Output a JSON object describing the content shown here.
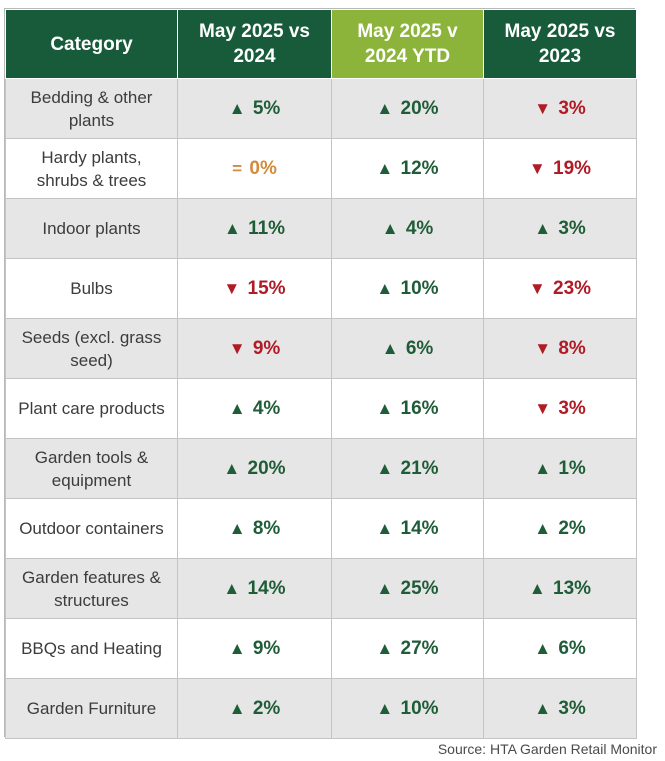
{
  "table": {
    "headers": [
      "Category",
      "May 2025 vs 2024",
      "May 2025 v 2024 YTD",
      "May 2025 vs 2023"
    ],
    "rows": [
      {
        "category": "Bedding & other plants",
        "values": [
          {
            "dir": "up",
            "arrow": "▲",
            "text": "5%"
          },
          {
            "dir": "up",
            "arrow": "▲",
            "text": "20%"
          },
          {
            "dir": "down",
            "arrow": "▼",
            "text": "3%"
          }
        ]
      },
      {
        "category": "Hardy plants, shrubs & trees",
        "values": [
          {
            "dir": "flat",
            "arrow": "=",
            "text": "0%"
          },
          {
            "dir": "up",
            "arrow": "▲",
            "text": "12%"
          },
          {
            "dir": "down",
            "arrow": "▼",
            "text": "19%"
          }
        ]
      },
      {
        "category": "Indoor plants",
        "values": [
          {
            "dir": "up",
            "arrow": "▲",
            "text": "11%"
          },
          {
            "dir": "up",
            "arrow": "▲",
            "text": "4%"
          },
          {
            "dir": "up",
            "arrow": "▲",
            "text": "3%"
          }
        ]
      },
      {
        "category": "Bulbs",
        "values": [
          {
            "dir": "down",
            "arrow": "▼",
            "text": "15%"
          },
          {
            "dir": "up",
            "arrow": "▲",
            "text": "10%"
          },
          {
            "dir": "down",
            "arrow": "▼",
            "text": "23%"
          }
        ]
      },
      {
        "category": "Seeds (excl. grass seed)",
        "values": [
          {
            "dir": "down",
            "arrow": "▼",
            "text": "9%"
          },
          {
            "dir": "up",
            "arrow": "▲",
            "text": "6%"
          },
          {
            "dir": "down",
            "arrow": "▼",
            "text": "8%"
          }
        ]
      },
      {
        "category": "Plant care products",
        "values": [
          {
            "dir": "up",
            "arrow": "▲",
            "text": "4%"
          },
          {
            "dir": "up",
            "arrow": "▲",
            "text": "16%"
          },
          {
            "dir": "down",
            "arrow": "▼",
            "text": "3%"
          }
        ]
      },
      {
        "category": "Garden tools & equipment",
        "values": [
          {
            "dir": "up",
            "arrow": "▲",
            "text": "20%"
          },
          {
            "dir": "up",
            "arrow": "▲",
            "text": "21%"
          },
          {
            "dir": "up",
            "arrow": "▲",
            "text": "1%"
          }
        ]
      },
      {
        "category": "Outdoor containers",
        "values": [
          {
            "dir": "up",
            "arrow": "▲",
            "text": "8%"
          },
          {
            "dir": "up",
            "arrow": "▲",
            "text": "14%"
          },
          {
            "dir": "up",
            "arrow": "▲",
            "text": "2%"
          }
        ]
      },
      {
        "category": "Garden features & structures",
        "values": [
          {
            "dir": "up",
            "arrow": "▲",
            "text": "14%"
          },
          {
            "dir": "up",
            "arrow": "▲",
            "text": "25%"
          },
          {
            "dir": "up",
            "arrow": "▲",
            "text": "13%"
          }
        ]
      },
      {
        "category": "BBQs and Heating",
        "values": [
          {
            "dir": "up",
            "arrow": "▲",
            "text": "9%"
          },
          {
            "dir": "up",
            "arrow": "▲",
            "text": "27%"
          },
          {
            "dir": "up",
            "arrow": "▲",
            "text": "6%"
          }
        ]
      },
      {
        "category": "Garden Furniture",
        "values": [
          {
            "dir": "up",
            "arrow": "▲",
            "text": "2%"
          },
          {
            "dir": "up",
            "arrow": "▲",
            "text": "10%"
          },
          {
            "dir": "up",
            "arrow": "▲",
            "text": "3%"
          }
        ]
      }
    ]
  },
  "source": "Source: HTA Garden Retail Monitor",
  "colors": {
    "header_green": "#175b3a",
    "header_highlight": "#8cb43b",
    "up": "#1f5c38",
    "down": "#b01b25",
    "flat": "#d28a3c",
    "row_alt": "#e6e6e6"
  }
}
